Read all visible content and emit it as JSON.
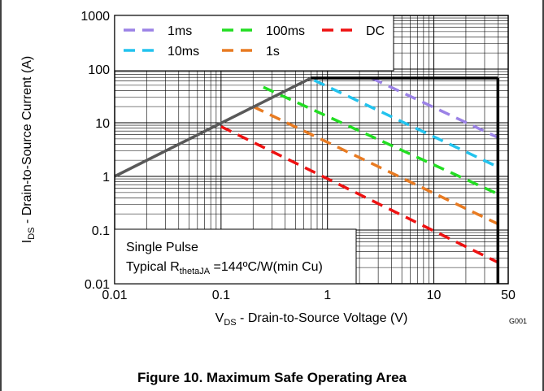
{
  "chart_data": {
    "type": "line",
    "scale": "log-log",
    "xlim": [
      0.01,
      50
    ],
    "ylim": [
      0.01,
      1000
    ],
    "x_ticks": [
      0.01,
      0.1,
      1,
      10,
      50
    ],
    "x_tick_labels": [
      "0.01",
      "0.1",
      "1",
      "10",
      "50"
    ],
    "y_ticks": [
      0.01,
      0.1,
      1,
      10,
      100,
      1000
    ],
    "y_tick_labels": [
      "0.01",
      "0.1",
      "1",
      "10",
      "100",
      "1000"
    ],
    "xlabel": {
      "main": "V",
      "sub": "DS",
      "rest": " - Drain-to-Source Voltage (V)"
    },
    "ylabel": {
      "main": "I",
      "sub": "DS",
      "rest": " - Drain-to-Source Current (A)"
    },
    "grid": true,
    "legend_position": "top",
    "rdson_limit": {
      "x": [
        0.01,
        0.7
      ],
      "y": [
        1.0,
        68
      ],
      "color": "#595959"
    },
    "current_limit": {
      "x": [
        0.7,
        40
      ],
      "y": [
        68,
        68
      ],
      "color": "#000000"
    },
    "voltage_limit": {
      "x": [
        40,
        40
      ],
      "y": [
        68,
        0.01
      ],
      "color": "#000000"
    },
    "series": [
      {
        "name": "1ms",
        "color": "#9b82e6",
        "x": [
          2.6,
          40
        ],
        "y": [
          68,
          5.3
        ]
      },
      {
        "name": "10ms",
        "color": "#22c3ee",
        "x": [
          0.75,
          40
        ],
        "y": [
          62,
          1.5
        ]
      },
      {
        "name": "100ms",
        "color": "#22dd22",
        "x": [
          0.25,
          40
        ],
        "y": [
          46,
          0.47
        ]
      },
      {
        "name": "1s",
        "color": "#e87b22",
        "x": [
          0.2,
          40
        ],
        "y": [
          20,
          0.13
        ]
      },
      {
        "name": "DC",
        "color": "#ee1111",
        "x": [
          0.1,
          40
        ],
        "y": [
          8.5,
          0.025
        ]
      }
    ],
    "legend_order": [
      "1ms",
      "100ms",
      "DC",
      "10ms",
      "1s"
    ],
    "annotation": {
      "line1": "Single Pulse",
      "line2_pre": "Typical R",
      "line2_sub": "thetaJA",
      "line2_post": " =144ºC/W(min Cu)"
    },
    "figure_id": "G001"
  },
  "caption": "Figure 10. Maximum Safe Operating Area"
}
